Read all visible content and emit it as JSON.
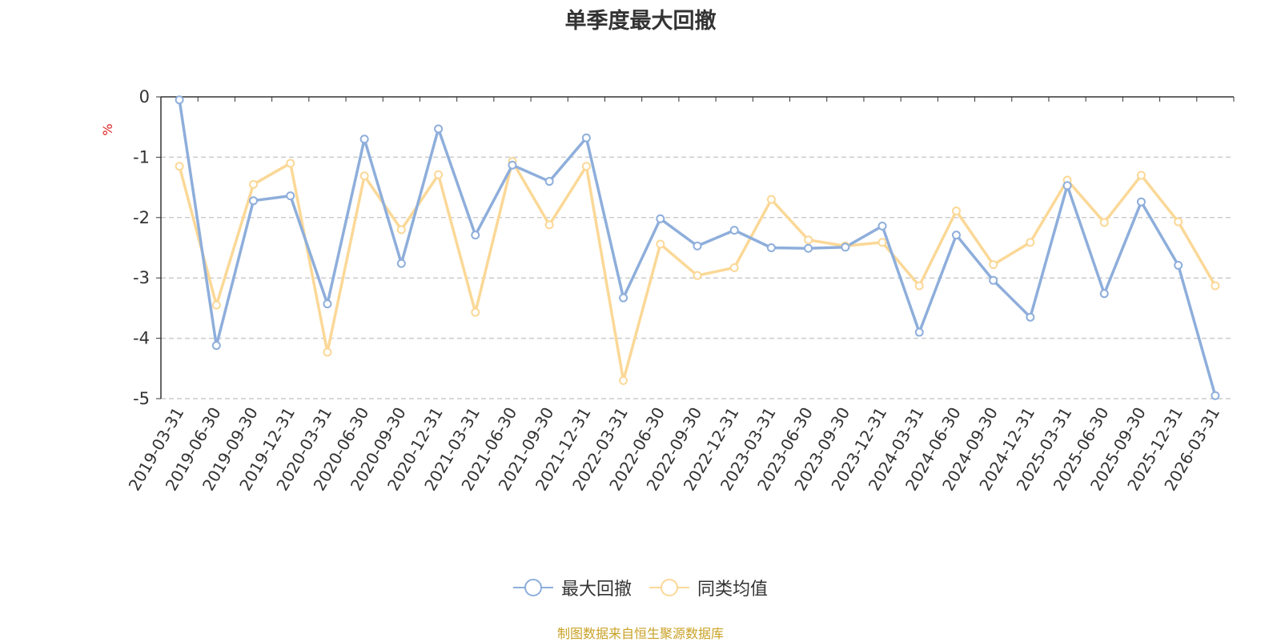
{
  "chart_data": {
    "type": "line",
    "title": "单季度最大回撤",
    "ylabel": "%",
    "ylim": [
      -5,
      0
    ],
    "y_ticks": [
      0,
      -1,
      -2,
      -3,
      -4,
      -5
    ],
    "grid": true,
    "legend_position": "bottom",
    "categories": [
      "2019-03-31",
      "2019-06-30",
      "2019-09-30",
      "2019-12-31",
      "2020-03-31",
      "2020-06-30",
      "2020-09-30",
      "2020-12-31",
      "2021-03-31",
      "2021-06-30",
      "2021-09-30",
      "2021-12-31",
      "2022-03-31",
      "2022-06-30",
      "2022-09-30",
      "2022-12-31",
      "2023-03-31",
      "2023-06-30",
      "2023-09-30",
      "2023-12-31",
      "2024-03-31",
      "2024-06-30",
      "2024-09-30",
      "2024-12-31",
      "2025-03-31",
      "2025-06-30",
      "2025-09-30",
      "2025-12-31",
      "2026-03-31"
    ],
    "series": [
      {
        "name": "最大回撤",
        "color": "#8eaedb",
        "values": [
          -0.05,
          -4.12,
          -1.72,
          -1.64,
          -3.43,
          -0.7,
          -2.76,
          -0.53,
          -2.29,
          -1.13,
          -1.4,
          -0.68,
          -3.33,
          -2.02,
          -2.47,
          -2.21,
          -2.5,
          -2.51,
          -2.49,
          -2.14,
          -3.9,
          -2.29,
          -3.04,
          -3.65,
          -1.47,
          -3.26,
          -1.74,
          -2.79,
          -4.95
        ]
      },
      {
        "name": "同类均值",
        "color": "#fbd897",
        "values": [
          -1.15,
          -3.45,
          -1.45,
          -1.1,
          -4.23,
          -1.31,
          -2.2,
          -1.29,
          -3.57,
          -1.07,
          -2.12,
          -1.15,
          -4.7,
          -2.44,
          -2.96,
          -2.83,
          -1.7,
          -2.37,
          -2.47,
          -2.41,
          -3.13,
          -1.89,
          -2.78,
          -2.41,
          -1.38,
          -2.08,
          -1.3,
          -2.07,
          -3.13
        ]
      }
    ]
  },
  "source": "制图数据来自恒生聚源数据库"
}
